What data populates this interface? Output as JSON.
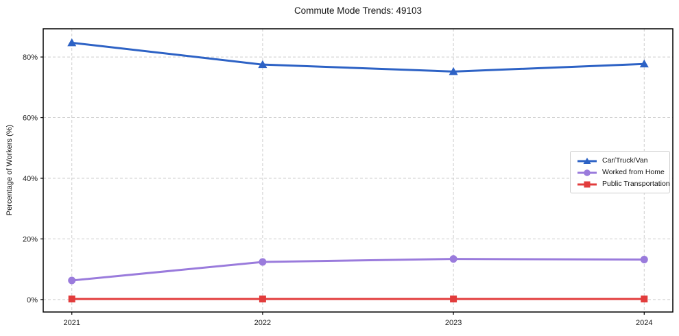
{
  "chart_data": {
    "type": "line",
    "title": "Commute Mode Trends: 49103",
    "xlabel": "",
    "ylabel": "Percentage of Workers (%)",
    "x": [
      2021,
      2022,
      2023,
      2024
    ],
    "xtick_labels": [
      "2021",
      "2022",
      "2023",
      "2024"
    ],
    "yticks": [
      0,
      20,
      40,
      60,
      80
    ],
    "ytick_labels": [
      "0%",
      "20%",
      "40%",
      "60%",
      "80%"
    ],
    "xlim": [
      2020.85,
      2024.15
    ],
    "ylim": [
      -4.1,
      89.3
    ],
    "grid": true,
    "legend_position": "center-right",
    "series": [
      {
        "name": "Car/Truck/Van",
        "marker": "triangle",
        "color": "#2d62c5",
        "values": [
          84.7,
          77.5,
          75.2,
          77.7
        ]
      },
      {
        "name": "Worked from Home",
        "marker": "circle",
        "color": "#9a7bdc",
        "values": [
          6.3,
          12.4,
          13.4,
          13.2
        ]
      },
      {
        "name": "Public Transportation",
        "marker": "square",
        "color": "#e23c3c",
        "values": [
          0.2,
          0.2,
          0.2,
          0.2
        ]
      }
    ],
    "colors": {
      "background": "#ffffff",
      "grid": "#cccccc",
      "spine": "#000000",
      "tick_label": "#202020"
    }
  }
}
